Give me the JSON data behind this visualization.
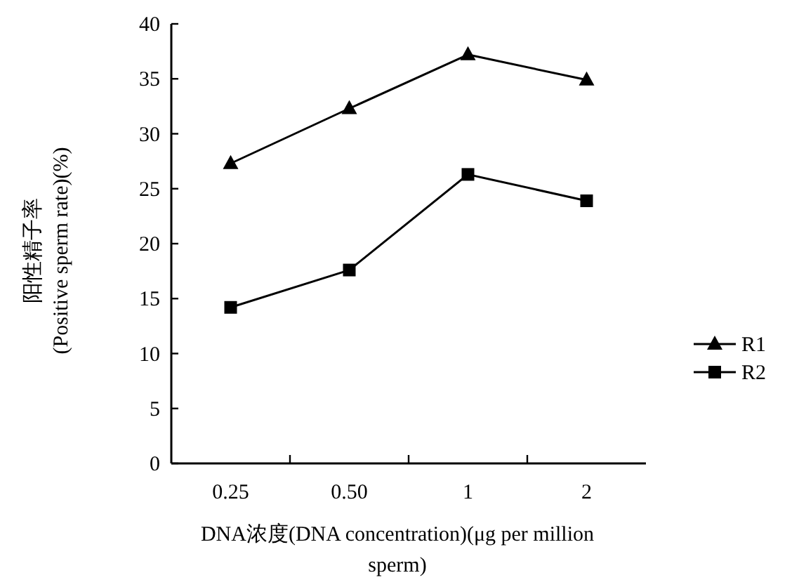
{
  "chart_data": {
    "type": "line",
    "xlabel": "DNA浓度(DNA concentration)(μg per million sperm)",
    "ylabel": "阳性精子率\n(Positive sperm rate)(%)",
    "categories": [
      "0.25",
      "0.50",
      "1",
      "2"
    ],
    "series": [
      {
        "name": "R1",
        "color": "#000000",
        "marker": "triangle",
        "values": [
          27.3,
          32.3,
          37.2,
          34.9
        ]
      },
      {
        "name": "R2",
        "color": "#000000",
        "marker": "square",
        "values": [
          14.2,
          17.6,
          26.3,
          23.9
        ]
      }
    ],
    "ylim": [
      0,
      40
    ],
    "yticks": [
      0,
      5,
      10,
      15,
      20,
      25,
      30,
      35,
      40
    ],
    "line_style": "solid",
    "legend": "right"
  }
}
